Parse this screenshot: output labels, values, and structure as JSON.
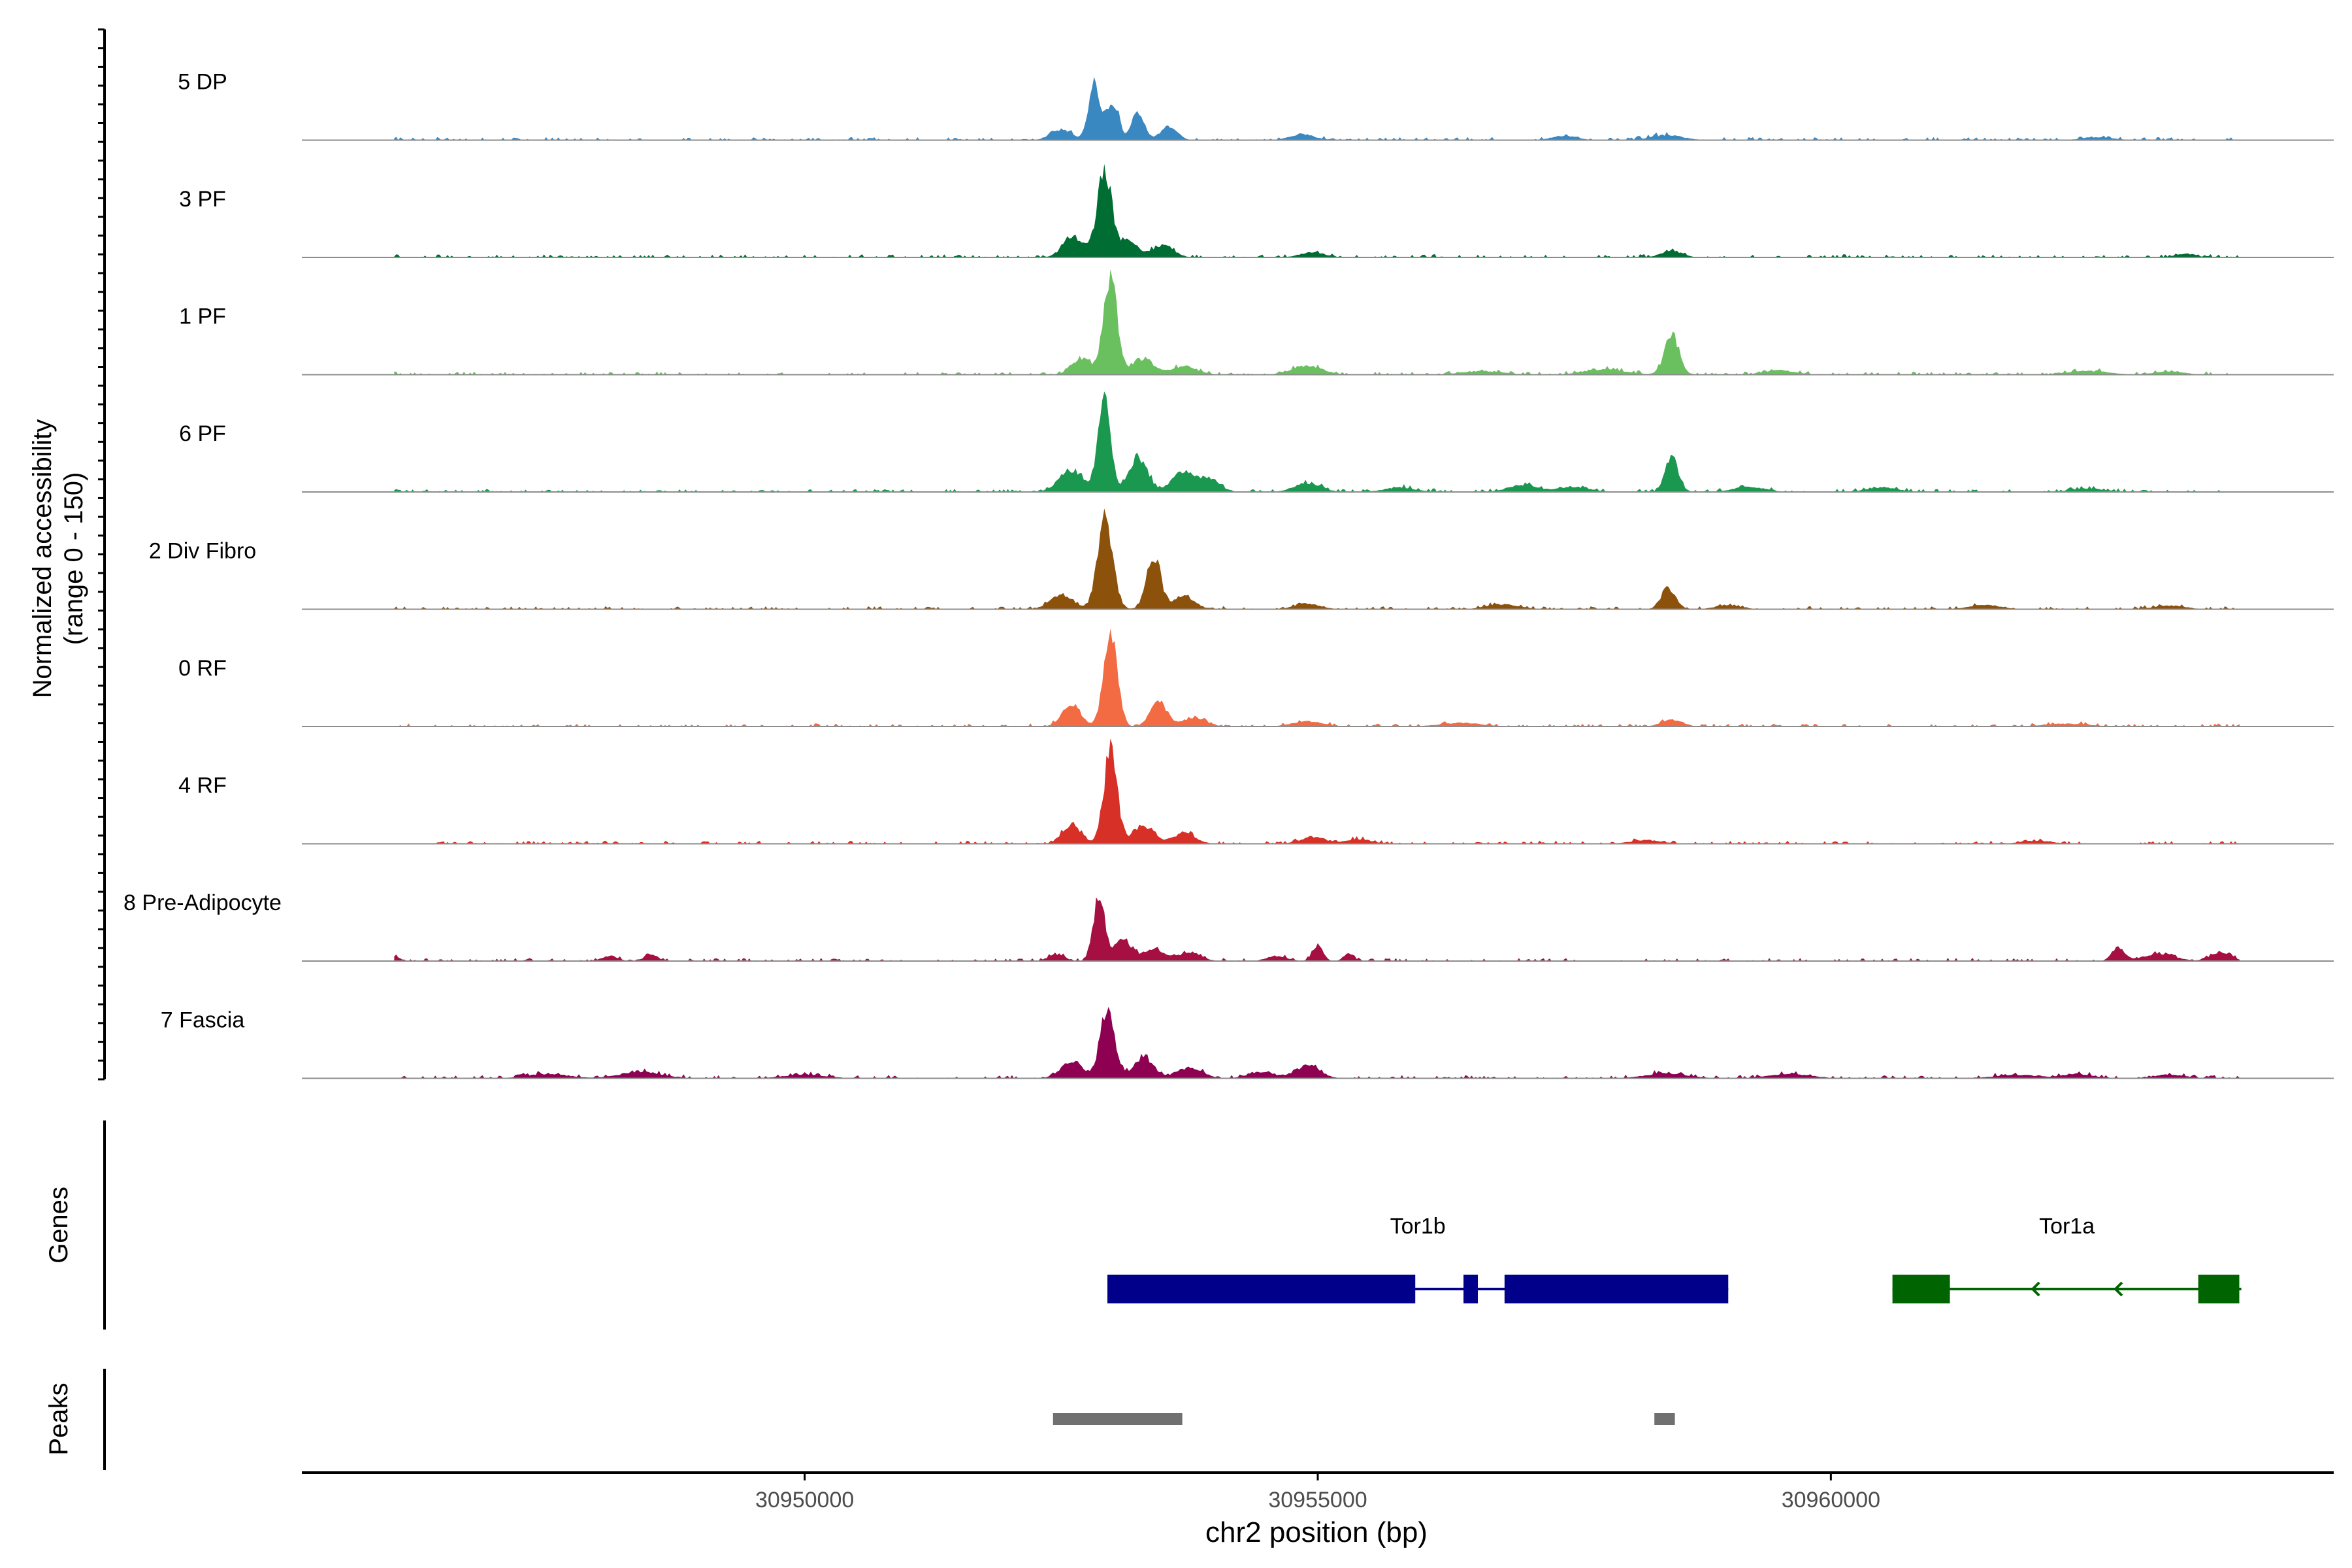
{
  "chart_data": {
    "type": "area",
    "title": "",
    "ylabel_line1": "Normalized accessibility",
    "ylabel_line2": "(range 0 - 150)",
    "xlabel": "chr2 position (bp)",
    "xlim": [
      30945100,
      30964900
    ],
    "ylim": [
      0,
      150
    ],
    "x_ticks": [
      30950000,
      30955000,
      30960000
    ],
    "x_tick_labels": [
      "30950000",
      "30955000",
      "30960000"
    ],
    "series": [
      {
        "name": "5 DP",
        "color": "#3A88C2",
        "peaks": [
          [
            30952820,
            78,
            55
          ],
          [
            30953000,
            52,
            60
          ],
          [
            30953250,
            38,
            60
          ],
          [
            30953550,
            18,
            80
          ],
          [
            30952500,
            14,
            100
          ],
          [
            30954850,
            8,
            120
          ],
          [
            30957400,
            6,
            120
          ],
          [
            30958400,
            7,
            150
          ],
          [
            30962600,
            4,
            150
          ]
        ]
      },
      {
        "name": "3 PF",
        "color": "#006D33",
        "peaks": [
          [
            30952920,
            118,
            70
          ],
          [
            30952620,
            28,
            100
          ],
          [
            30953150,
            22,
            100
          ],
          [
            30953500,
            16,
            100
          ],
          [
            30954950,
            7,
            120
          ],
          [
            30958450,
            9,
            100
          ],
          [
            30963450,
            5,
            100
          ]
        ]
      },
      {
        "name": "1 PF",
        "color": "#6ABF5F",
        "peaks": [
          [
            30952980,
            133,
            65
          ],
          [
            30952700,
            22,
            100
          ],
          [
            30953300,
            22,
            100
          ],
          [
            30953700,
            12,
            120
          ],
          [
            30954900,
            12,
            150
          ],
          [
            30956600,
            5,
            200
          ],
          [
            30957800,
            7,
            200
          ],
          [
            30958450,
            55,
            70
          ],
          [
            30959500,
            6,
            150
          ],
          [
            30962500,
            5,
            200
          ],
          [
            30963300,
            4,
            150
          ]
        ]
      },
      {
        "name": "6 PF",
        "color": "#1A9850",
        "peaks": [
          [
            30952920,
            134,
            60
          ],
          [
            30952600,
            30,
            120
          ],
          [
            30953250,
            48,
            90
          ],
          [
            30953700,
            28,
            110
          ],
          [
            30953950,
            16,
            100
          ],
          [
            30954900,
            12,
            130
          ],
          [
            30955800,
            6,
            150
          ],
          [
            30957000,
            9,
            150
          ],
          [
            30957500,
            7,
            150
          ],
          [
            30958450,
            47,
            65
          ],
          [
            30959200,
            7,
            150
          ],
          [
            30960500,
            6,
            150
          ],
          [
            30962500,
            5,
            150
          ]
        ]
      },
      {
        "name": "2 Div Fibro",
        "color": "#8C510A",
        "peaks": [
          [
            30952930,
            120,
            75
          ],
          [
            30953400,
            72,
            70
          ],
          [
            30952500,
            20,
            110
          ],
          [
            30953700,
            18,
            100
          ],
          [
            30954900,
            8,
            120
          ],
          [
            30956800,
            7,
            150
          ],
          [
            30958420,
            28,
            70
          ],
          [
            30959000,
            6,
            120
          ],
          [
            30961500,
            6,
            150
          ],
          [
            30963300,
            5,
            150
          ]
        ]
      },
      {
        "name": "0 RF",
        "color": "#F26B43",
        "peaks": [
          [
            30952980,
            138,
            65
          ],
          [
            30952600,
            30,
            90
          ],
          [
            30953450,
            34,
            80
          ],
          [
            30953800,
            12,
            110
          ],
          [
            30954900,
            7,
            150
          ],
          [
            30956400,
            5,
            200
          ],
          [
            30958450,
            9,
            100
          ],
          [
            30962300,
            4,
            200
          ]
        ]
      },
      {
        "name": "4 RF",
        "color": "#D73027",
        "peaks": [
          [
            30952980,
            128,
            65
          ],
          [
            30952600,
            27,
            90
          ],
          [
            30953300,
            25,
            100
          ],
          [
            30953700,
            14,
            110
          ],
          [
            30954950,
            9,
            120
          ],
          [
            30955400,
            6,
            130
          ],
          [
            30958200,
            5,
            150
          ],
          [
            30962000,
            4,
            150
          ]
        ]
      },
      {
        "name": "8 Pre-Adipocyte",
        "color": "#A50F42",
        "peaks": [
          [
            30952870,
            86,
            55
          ],
          [
            30953100,
            32,
            80
          ],
          [
            30953400,
            16,
            100
          ],
          [
            30953750,
            12,
            110
          ],
          [
            30952450,
            9,
            80
          ],
          [
            30954600,
            7,
            100
          ],
          [
            30955000,
            22,
            50
          ],
          [
            30955300,
            11,
            50
          ],
          [
            30946000,
            7,
            50
          ],
          [
            30948100,
            7,
            80
          ],
          [
            30948500,
            10,
            60
          ],
          [
            30962800,
            20,
            60
          ],
          [
            30963200,
            10,
            150
          ],
          [
            30963800,
            13,
            100
          ]
        ]
      },
      {
        "name": "7 Fascia",
        "color": "#8E0152",
        "peaks": [
          [
            30952950,
            96,
            70
          ],
          [
            30952600,
            22,
            110
          ],
          [
            30953300,
            28,
            100
          ],
          [
            30953750,
            15,
            120
          ],
          [
            30954900,
            18,
            120
          ],
          [
            30954450,
            9,
            120
          ],
          [
            30948400,
            9,
            200
          ],
          [
            30947500,
            6,
            200
          ],
          [
            30950000,
            5,
            200
          ],
          [
            30958400,
            7,
            200
          ],
          [
            30959600,
            6,
            200
          ],
          [
            30961800,
            5,
            200
          ],
          [
            30962400,
            6,
            150
          ],
          [
            30963300,
            5,
            150
          ]
        ]
      }
    ],
    "genes": [
      {
        "name": "Tor1b",
        "color": "#00008B",
        "start": 30952950,
        "end": 30959000,
        "exons": [
          [
            30952950,
            30955950
          ],
          [
            30956420,
            30956560
          ],
          [
            30956820,
            30959000
          ]
        ],
        "strand": "+"
      },
      {
        "name": "Tor1a",
        "color": "#006400",
        "start": 30960600,
        "end": 30964000,
        "exons": [
          [
            30960600,
            30961160
          ],
          [
            30963580,
            30963980
          ]
        ],
        "strand": "-"
      }
    ],
    "peaks_track": {
      "color": "#707070",
      "regions": [
        [
          30952420,
          30953680
        ],
        [
          30958280,
          30958480
        ]
      ]
    },
    "track_labels": {
      "genes": "Genes",
      "peaks": "Peaks"
    }
  }
}
